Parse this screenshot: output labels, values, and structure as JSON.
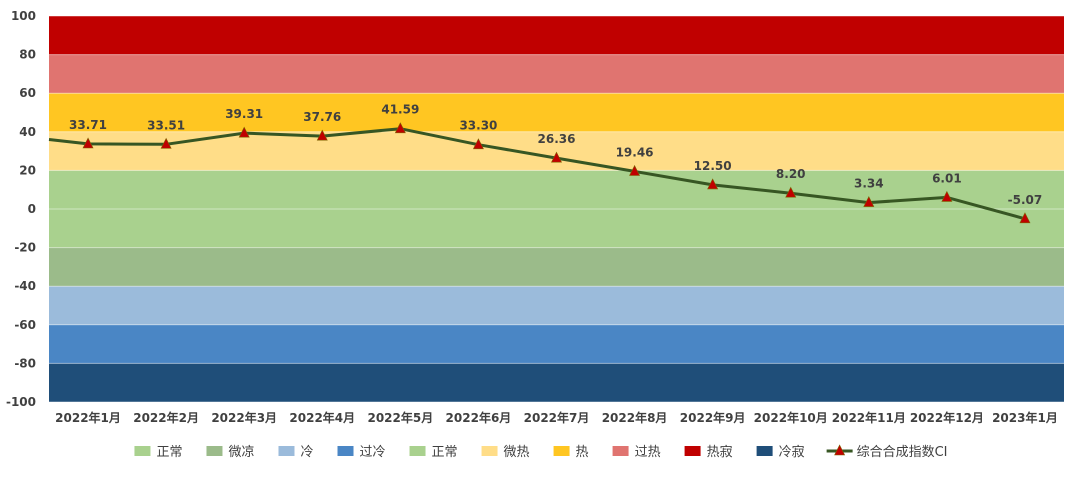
{
  "chart_data": {
    "type": "line",
    "categories": [
      "2022年1月",
      "2022年2月",
      "2022年3月",
      "2022年4月",
      "2022年5月",
      "2022年6月",
      "2022年7月",
      "2022年8月",
      "2022年9月",
      "2022年10月",
      "2022年11月",
      "2022年12月",
      "2023年1月"
    ],
    "series": [
      {
        "name": "综合合成指数CI",
        "values": [
          33.71,
          33.51,
          39.31,
          37.76,
          41.59,
          33.3,
          26.36,
          19.46,
          12.5,
          8.2,
          3.34,
          6.01,
          -5.07
        ],
        "labels": [
          "33.71",
          "33.51",
          "39.31",
          "37.76",
          "41.59",
          "33.30",
          "26.36",
          "19.46",
          "12.50",
          "8.20",
          "3.34",
          "6.01",
          "-5.07"
        ],
        "line_start_value": 36,
        "color": "#375623",
        "marker_color": "#C00000",
        "marker": "triangle"
      }
    ],
    "bands": [
      {
        "name": "冷寂",
        "from": -100,
        "to": -80,
        "color": "#1F4E79"
      },
      {
        "name": "过冷",
        "from": -80,
        "to": -60,
        "color": "#4A86C5"
      },
      {
        "name": "冷",
        "from": -60,
        "to": -40,
        "color": "#9BBBDB"
      },
      {
        "name": "微凉",
        "from": -40,
        "to": -20,
        "color": "#9BBB8A"
      },
      {
        "name": "正常",
        "from": -20,
        "to": 20,
        "color": "#A9D18E"
      },
      {
        "name": "微热",
        "from": 20,
        "to": 40,
        "color": "#FFDD88"
      },
      {
        "name": "热",
        "from": 40,
        "to": 60,
        "color": "#FFC622"
      },
      {
        "name": "过热",
        "from": 60,
        "to": 80,
        "color": "#E07470"
      },
      {
        "name": "热寂",
        "from": 80,
        "to": 100,
        "color": "#C00000"
      }
    ],
    "ylim": [
      -100,
      100
    ],
    "yticks": [
      100,
      80,
      60,
      40,
      20,
      0,
      -20,
      -40,
      -60,
      -80,
      -100
    ],
    "grid": true,
    "title": "",
    "xlabel": "",
    "ylabel": "",
    "legend": {
      "placement": "bottom",
      "items": [
        {
          "label": "正常",
          "color": "#A9D18E",
          "kind": "box"
        },
        {
          "label": "微凉",
          "color": "#9BBB8A",
          "kind": "box"
        },
        {
          "label": "冷",
          "color": "#9BBBDB",
          "kind": "box"
        },
        {
          "label": "过冷",
          "color": "#4A86C5",
          "kind": "box"
        },
        {
          "label": "正常",
          "color": "#A9D18E",
          "kind": "box"
        },
        {
          "label": "微热",
          "color": "#FFDD88",
          "kind": "box"
        },
        {
          "label": "热",
          "color": "#FFC622",
          "kind": "box"
        },
        {
          "label": "过热",
          "color": "#E07470",
          "kind": "box"
        },
        {
          "label": "热寂",
          "color": "#C00000",
          "kind": "box"
        },
        {
          "label": "冷寂",
          "color": "#1F4E79",
          "kind": "box"
        },
        {
          "label": "综合合成指数CI",
          "color": "#375623",
          "kind": "line"
        }
      ]
    }
  }
}
